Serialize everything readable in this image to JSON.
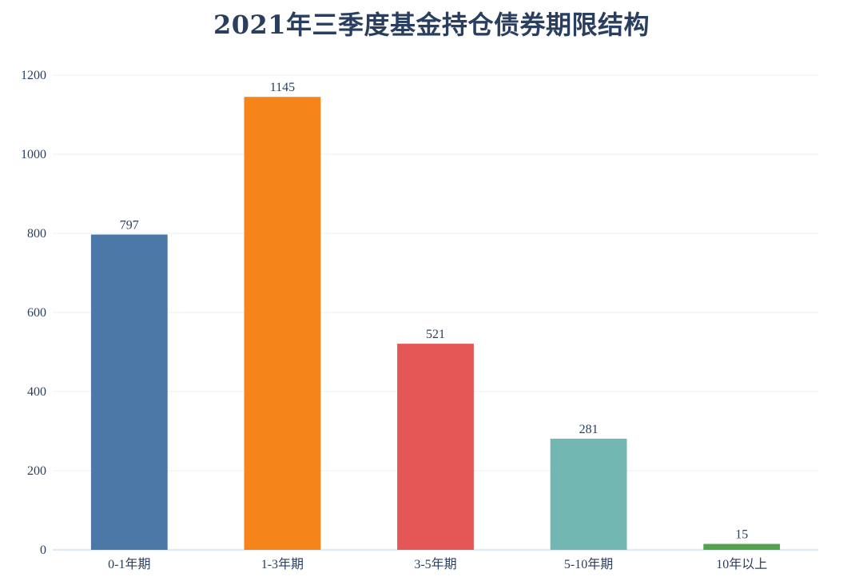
{
  "chart_data": {
    "type": "bar",
    "title": "2021年三季度基金持仓债券期限结构",
    "xlabel": "",
    "ylabel": "",
    "categories": [
      "0-1年期",
      "1-3年期",
      "3-5年期",
      "5-10年期",
      "10年以上"
    ],
    "values": [
      797,
      1145,
      521,
      281,
      15
    ],
    "colors": [
      "#4c78a8",
      "#f58518",
      "#e45756",
      "#72b7b2",
      "#54a24b"
    ],
    "ylim": [
      0,
      1200
    ],
    "yticks": [
      0,
      200,
      400,
      600,
      800,
      1000,
      1200
    ],
    "grid": true,
    "legend": "none",
    "text_color": "#2a3f5f"
  }
}
